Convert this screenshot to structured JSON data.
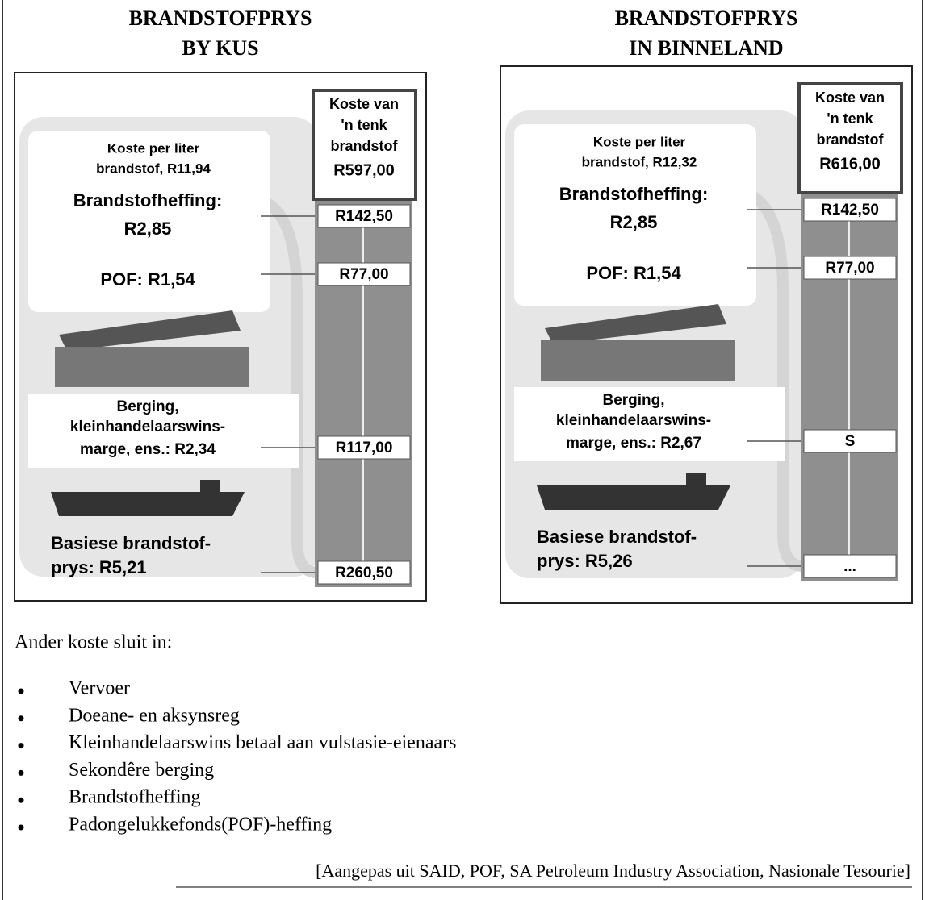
{
  "panels": [
    {
      "title": [
        "BRANDSTOFPRYS",
        "BY KUS"
      ],
      "tank": [
        "Koste van",
        "'n tenk",
        "brandstof",
        "R597,00"
      ],
      "per_liter": [
        "Koste per liter",
        "brandstof, R11,94"
      ],
      "items": [
        {
          "label": [
            "Brandstofheffing:",
            "R2,85"
          ],
          "tank_value": "R142,50"
        },
        {
          "label": [
            "POF: R1,54"
          ],
          "tank_value": "R77,00"
        },
        {
          "label": [
            "Berging,",
            "kleinhandelaarswins-",
            "marge, ens.: R2,34"
          ],
          "tank_value": "R117,00"
        },
        {
          "label": [
            "Basiese brandstof-",
            "prys:  R5,21"
          ],
          "tank_value": "R260,50"
        }
      ]
    },
    {
      "title": [
        "BRANDSTOFPRYS",
        "IN BINNELAND"
      ],
      "tank": [
        "Koste van",
        "'n tenk",
        "brandstof",
        "R616,00"
      ],
      "per_liter": [
        "Koste per liter",
        "brandstof, R12,32"
      ],
      "items": [
        {
          "label": [
            "Brandstofheffing:",
            "R2,85"
          ],
          "tank_value": "R142,50"
        },
        {
          "label": [
            "POF: R1,54"
          ],
          "tank_value": "R77,00"
        },
        {
          "label": [
            "Berging,",
            "kleinhandelaarswins-",
            "marge, ens.: R2,67"
          ],
          "tank_value": "S"
        },
        {
          "label": [
            "Basiese brandstof-",
            "prys:  R5,26"
          ],
          "tank_value": "..."
        }
      ]
    }
  ],
  "other_costs": {
    "intro": "Ander koste sluit in:",
    "items": [
      "Vervoer",
      "Doeane- en aksynsreg",
      "Kleinhandelaarswins betaal aan vulstasie-eienaars",
      "Sekondêre berging",
      "Brandstofheffing",
      "Padongelukkefonds(POF)-heffing"
    ]
  },
  "source": "[Aangepas uit SAID, POF, SA Petroleum Industry Association, Nasionale Tesourie]"
}
